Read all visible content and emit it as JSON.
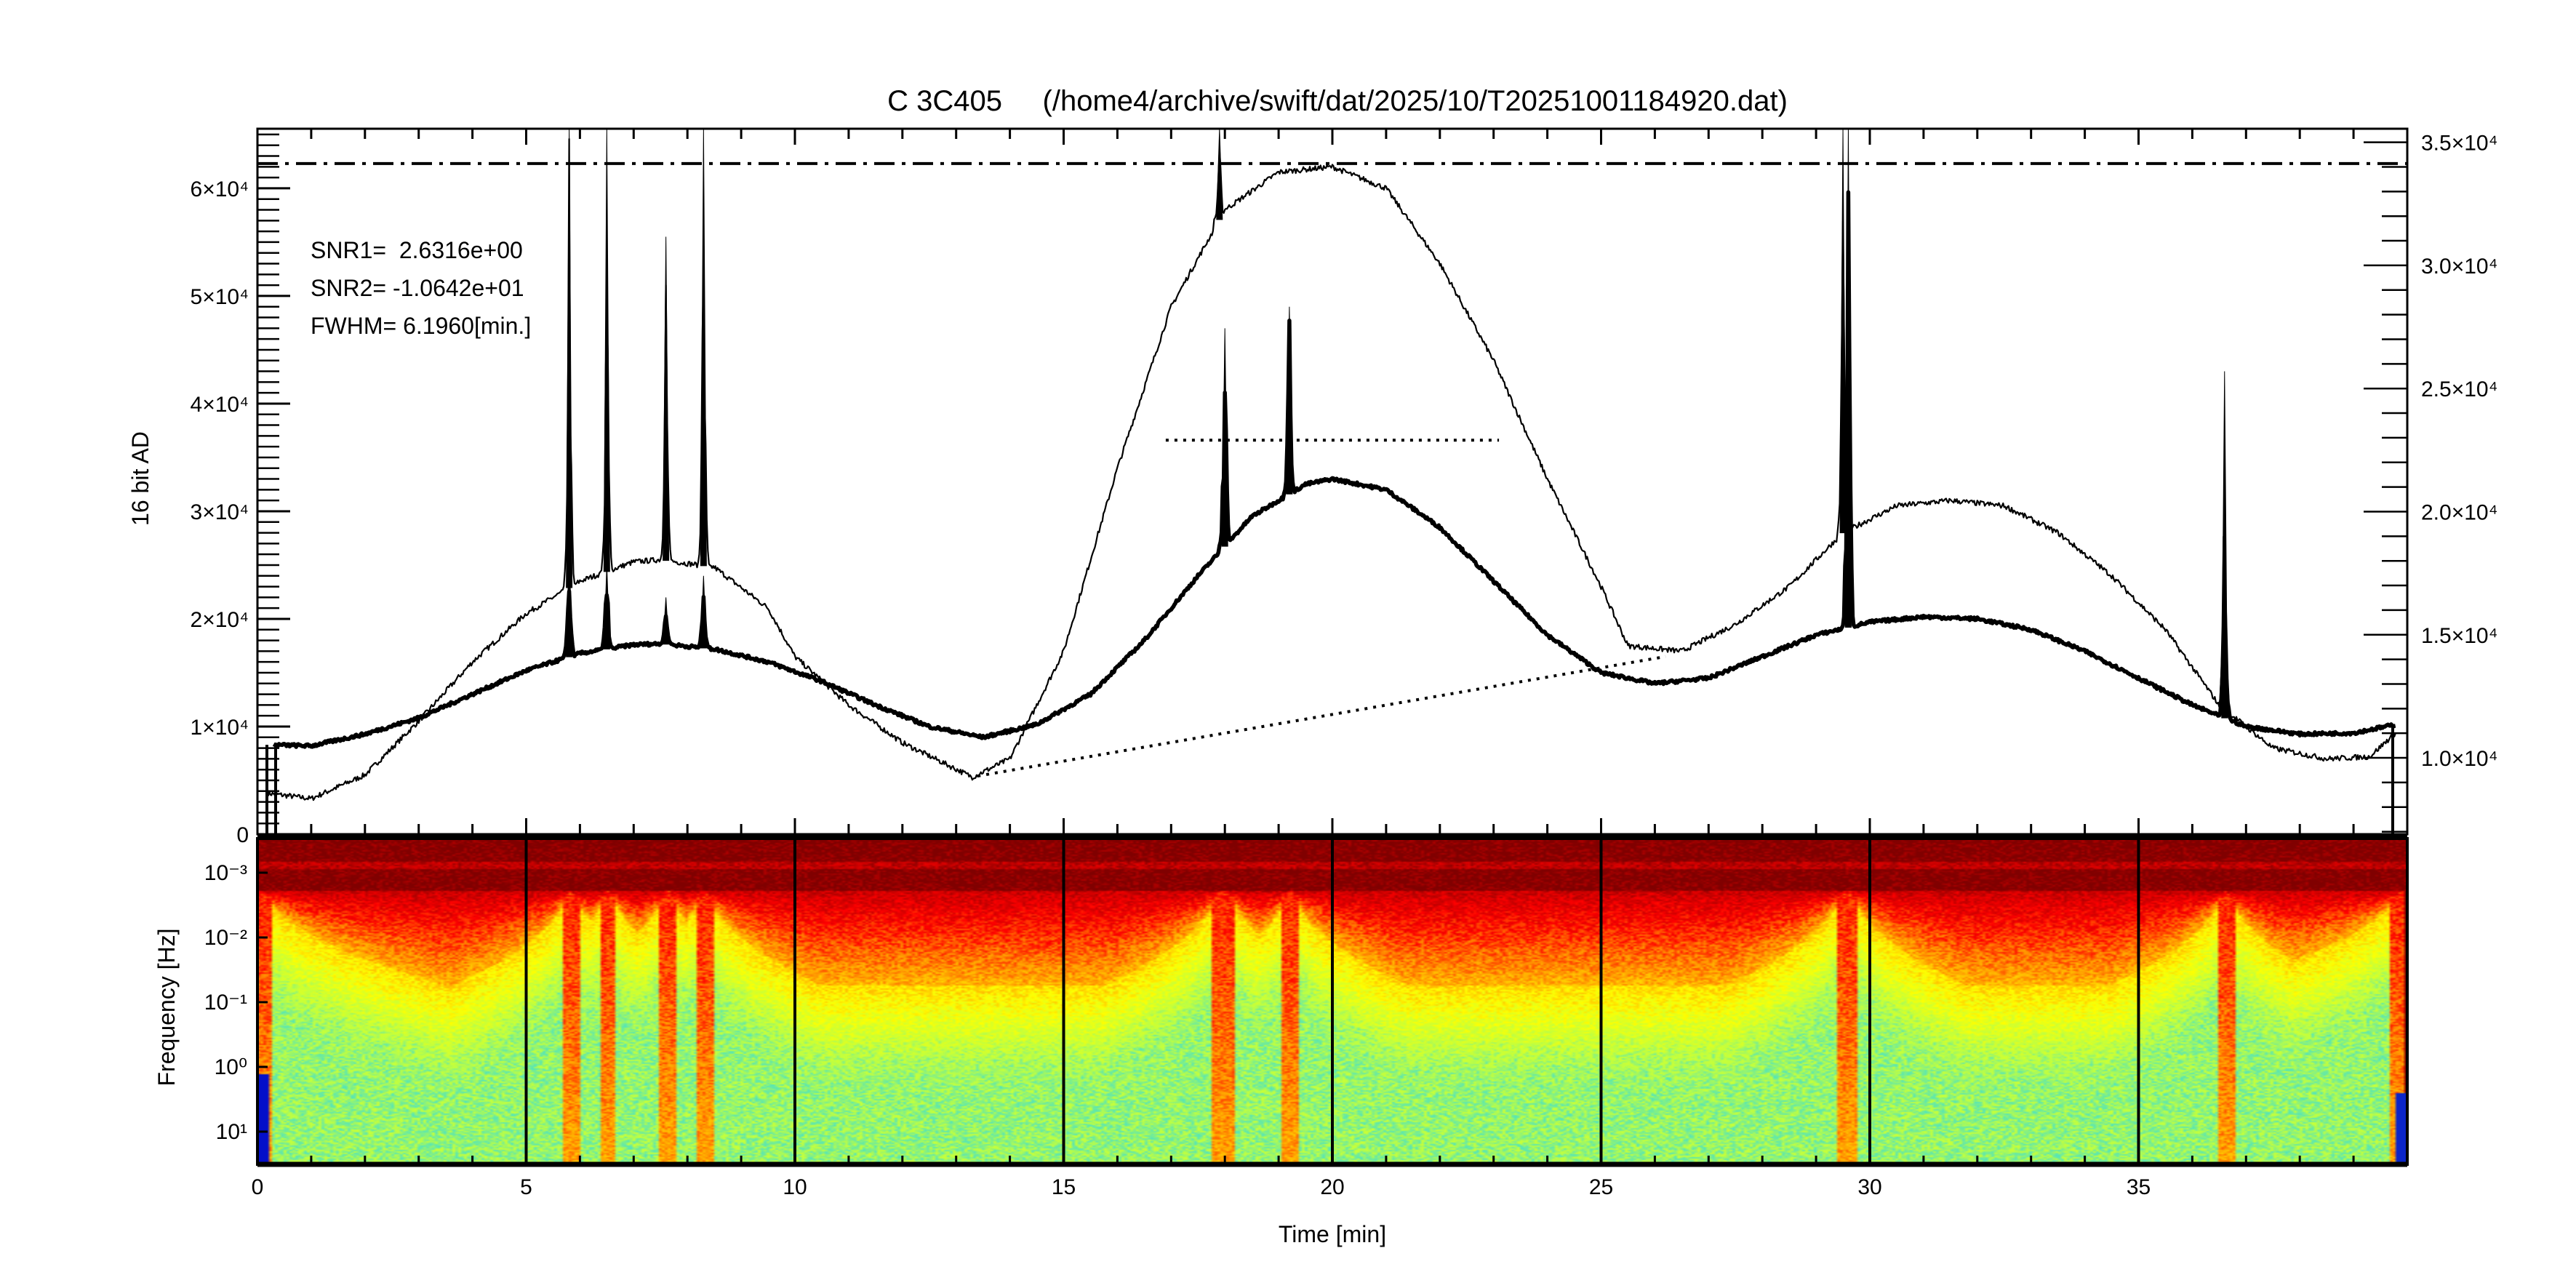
{
  "chart_data": [
    {
      "type": "line",
      "title": "C 3C405     (/home4/archive/swift/dat/2025/10/T20251001184920.dat)",
      "ylabel": "16 bit AD",
      "xlim": [
        0,
        40
      ],
      "ylim": [
        0,
        65535
      ],
      "y2lim": [
        6900,
        35550
      ],
      "grid": false,
      "y_ticks": [
        {
          "value": 0,
          "label": "0"
        },
        {
          "value": 10000,
          "label": "1×10⁴"
        },
        {
          "value": 20000,
          "label": "2×10⁴"
        },
        {
          "value": 30000,
          "label": "3×10⁴"
        },
        {
          "value": 40000,
          "label": "4×10⁴"
        },
        {
          "value": 50000,
          "label": "5×10⁴"
        },
        {
          "value": 60000,
          "label": "6×10⁴"
        }
      ],
      "y2_ticks": [
        {
          "value": 10000,
          "label": "1.0×10⁴"
        },
        {
          "value": 15000,
          "label": "1.5×10⁴"
        },
        {
          "value": 20000,
          "label": "2.0×10⁴"
        },
        {
          "value": 25000,
          "label": "2.5×10⁴"
        },
        {
          "value": 30000,
          "label": "3.0×10⁴"
        },
        {
          "value": 35000,
          "label": "3.5×10⁴"
        }
      ],
      "annotations": [
        "SNR1=  2.6316e+00",
        "SNR2= -1.0642e+01",
        "FWHM= 6.1960[min.]"
      ],
      "reference_lines": {
        "dash_dot_level": 62300,
        "fwhm_dotted": {
          "t": [
            16.9,
            23.1
          ],
          "y": 36600
        },
        "baseline_dotted": {
          "t": [
            13.4,
            26.2
          ],
          "y": [
            5400,
            16500
          ]
        }
      },
      "series": [
        {
          "style": "thin",
          "x": [
            0.2,
            1,
            2,
            3,
            4,
            5,
            6,
            7,
            7.5,
            8.5,
            9.5,
            10,
            11,
            12,
            13.3,
            14,
            15,
            16,
            17,
            18,
            19,
            20,
            21,
            22,
            23,
            24,
            25,
            25.5,
            26.5,
            27.5,
            28.5,
            29.5,
            30.5,
            31.5,
            32.5,
            33.5,
            34.5,
            35.5,
            36.5,
            37.5,
            38.5,
            39.3,
            39.8
          ],
          "y": [
            3800,
            3300,
            5500,
            10500,
            16000,
            20500,
            23500,
            25300,
            25500,
            24800,
            21000,
            16500,
            12000,
            8500,
            5300,
            7000,
            17000,
            34000,
            49000,
            58000,
            61500,
            62000,
            60000,
            53000,
            44000,
            33000,
            23000,
            17500,
            17000,
            19500,
            23000,
            28000,
            30500,
            31000,
            30500,
            28000,
            24000,
            19000,
            12000,
            8000,
            7000,
            7200,
            9500
          ]
        },
        {
          "style": "thick",
          "x": [
            0.3,
            1,
            2,
            3,
            4,
            5,
            6,
            7,
            7.5,
            8.5,
            9.5,
            10.5,
            11.5,
            12.5,
            13.5,
            14.5,
            15.5,
            16.5,
            17.5,
            18.5,
            19.5,
            20,
            21,
            22,
            23,
            24,
            25,
            26,
            27,
            28,
            29,
            30,
            31,
            32,
            33,
            34,
            35,
            36,
            37,
            38,
            39,
            39.8
          ],
          "y": [
            8300,
            8200,
            9300,
            10800,
            13000,
            15200,
            16800,
            17600,
            17700,
            17200,
            16000,
            14200,
            12000,
            10000,
            9000,
            10200,
            13000,
            18000,
            24000,
            29500,
            32500,
            33000,
            32000,
            28500,
            23500,
            18500,
            15000,
            14000,
            14500,
            16500,
            18500,
            19700,
            20200,
            20000,
            19000,
            17000,
            14500,
            12000,
            10000,
            9300,
            9400,
            10200
          ]
        }
      ],
      "spikes": [
        {
          "t": 5.8,
          "peak": 65535,
          "series": "thin"
        },
        {
          "t": 6.5,
          "peak": 65535,
          "series": "thin"
        },
        {
          "t": 7.6,
          "peak": 55500,
          "series": "thin"
        },
        {
          "t": 8.3,
          "peak": 65535,
          "series": "thin"
        },
        {
          "t": 5.8,
          "peak": 27000,
          "series": "thick"
        },
        {
          "t": 6.5,
          "peak": 25000,
          "series": "thick"
        },
        {
          "t": 7.6,
          "peak": 22000,
          "series": "thick"
        },
        {
          "t": 8.3,
          "peak": 24000,
          "series": "thick"
        },
        {
          "t": 17.9,
          "peak": 65535,
          "series": "thin"
        },
        {
          "t": 18.0,
          "peak": 47000,
          "series": "thick"
        },
        {
          "t": 19.2,
          "peak": 49000,
          "series": "thick"
        },
        {
          "t": 29.5,
          "peak": 65535,
          "series": "thin"
        },
        {
          "t": 29.6,
          "peak": 65535,
          "series": "thick"
        },
        {
          "t": 36.6,
          "peak": 43000,
          "series": "thin"
        },
        {
          "t": 36.6,
          "peak": 25500,
          "series": "thick"
        }
      ]
    },
    {
      "type": "heatmap",
      "xlabel": "Time [min]",
      "ylabel": "Frequency [Hz]",
      "xlim": [
        0,
        40
      ],
      "x_ticks": [
        "0",
        "5",
        "10",
        "15",
        "20",
        "25",
        "30",
        "35"
      ],
      "y_ticks": [
        "10⁻³",
        "10⁻²",
        "10⁻¹",
        "10⁰",
        "10¹"
      ],
      "y_scale": "log",
      "vertical_lines_every_min": 5,
      "colormap": [
        "#0000c8",
        "#40e0d0",
        "#c0ff40",
        "#ffff00",
        "#ff9000",
        "#ff0000",
        "#c00000",
        "#800000"
      ]
    }
  ]
}
